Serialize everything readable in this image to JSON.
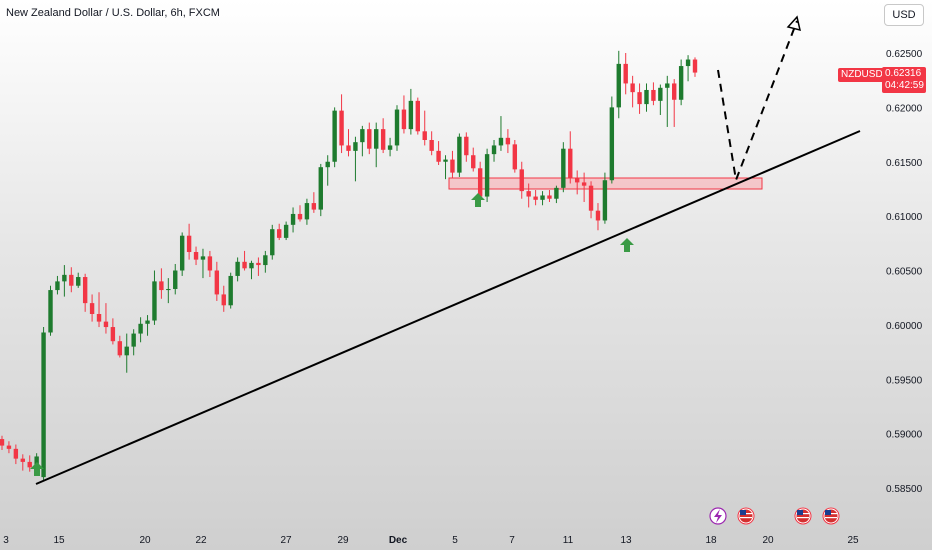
{
  "header": {
    "title": "New Zealand Dollar / U.S. Dollar, 6h, FXCM"
  },
  "currency_button": "USD",
  "price_tag": {
    "symbol": "NZDUSD",
    "price": "0.62316",
    "countdown": "04:42:59",
    "color": "#f23645"
  },
  "colors": {
    "up": "#1e7b2e",
    "down": "#f23645",
    "trendline": "#000000",
    "zone_fill": "#f7b9bd",
    "zone_border": "#f23645",
    "arrow": "#3a9a45"
  },
  "chart_data": {
    "type": "candlestick",
    "symbol": "NZDUSD",
    "timeframe": "6h",
    "title": "New Zealand Dollar / U.S. Dollar, 6h, FXCM",
    "ylim": [
      0.5825,
      0.6275
    ],
    "y_ticks": [
      "0.62500",
      "0.62000",
      "0.61500",
      "0.61000",
      "0.60500",
      "0.60000",
      "0.59500",
      "0.59000",
      "0.58500"
    ],
    "x_ticks": [
      "3",
      "15",
      "20",
      "22",
      "27",
      "29",
      "Dec",
      "5",
      "7",
      "11",
      "13",
      "18",
      "20",
      "25"
    ],
    "last_price": 0.62316,
    "candles": [
      [
        0.5895,
        0.5898,
        0.5885,
        0.5889
      ],
      [
        0.5889,
        0.5893,
        0.5882,
        0.5886
      ],
      [
        0.5886,
        0.589,
        0.5872,
        0.5877
      ],
      [
        0.5877,
        0.5881,
        0.5866,
        0.5874
      ],
      [
        0.5874,
        0.588,
        0.5865,
        0.5869
      ],
      [
        0.5869,
        0.5882,
        0.5862,
        0.5879
      ],
      [
        0.586,
        0.5998,
        0.5856,
        0.5993
      ],
      [
        0.5993,
        0.6036,
        0.599,
        0.6032
      ],
      [
        0.6032,
        0.6045,
        0.6028,
        0.604
      ],
      [
        0.604,
        0.6055,
        0.6026,
        0.6046
      ],
      [
        0.6046,
        0.6053,
        0.603,
        0.6036
      ],
      [
        0.6036,
        0.6048,
        0.6034,
        0.6044
      ],
      [
        0.6044,
        0.6047,
        0.6012,
        0.602
      ],
      [
        0.602,
        0.6028,
        0.6003,
        0.601
      ],
      [
        0.601,
        0.603,
        0.5998,
        0.6003
      ],
      [
        0.6003,
        0.602,
        0.5992,
        0.5998
      ],
      [
        0.5998,
        0.6006,
        0.5982,
        0.5985
      ],
      [
        0.5985,
        0.599,
        0.597,
        0.5972
      ],
      [
        0.5972,
        0.5992,
        0.5956,
        0.598
      ],
      [
        0.598,
        0.5996,
        0.5972,
        0.5992
      ],
      [
        0.5992,
        0.6007,
        0.5984,
        0.6001
      ],
      [
        0.6001,
        0.6009,
        0.599,
        0.6004
      ],
      [
        0.6004,
        0.605,
        0.6,
        0.604
      ],
      [
        0.604,
        0.6052,
        0.6024,
        0.6032
      ],
      [
        0.6032,
        0.6043,
        0.602,
        0.6033
      ],
      [
        0.6033,
        0.6056,
        0.6028,
        0.605
      ],
      [
        0.605,
        0.6085,
        0.6045,
        0.6082
      ],
      [
        0.6082,
        0.6093,
        0.606,
        0.6067
      ],
      [
        0.6067,
        0.6072,
        0.6055,
        0.606
      ],
      [
        0.606,
        0.607,
        0.6043,
        0.6063
      ],
      [
        0.6063,
        0.6068,
        0.6044,
        0.605
      ],
      [
        0.605,
        0.6058,
        0.6022,
        0.6028
      ],
      [
        0.6028,
        0.6036,
        0.6012,
        0.6018
      ],
      [
        0.6018,
        0.6048,
        0.6015,
        0.6045
      ],
      [
        0.6045,
        0.6062,
        0.604,
        0.6058
      ],
      [
        0.6058,
        0.6068,
        0.605,
        0.6052
      ],
      [
        0.6052,
        0.6059,
        0.6042,
        0.6057
      ],
      [
        0.6057,
        0.6062,
        0.6045,
        0.6055
      ],
      [
        0.6055,
        0.6068,
        0.6048,
        0.6064
      ],
      [
        0.6064,
        0.6092,
        0.606,
        0.6088
      ],
      [
        0.6088,
        0.6093,
        0.6078,
        0.608
      ],
      [
        0.608,
        0.6095,
        0.6078,
        0.6092
      ],
      [
        0.6092,
        0.6108,
        0.6085,
        0.6102
      ],
      [
        0.6102,
        0.611,
        0.6095,
        0.6097
      ],
      [
        0.6097,
        0.6116,
        0.6092,
        0.6112
      ],
      [
        0.6112,
        0.6122,
        0.6103,
        0.6106
      ],
      [
        0.6106,
        0.6148,
        0.61,
        0.6145
      ],
      [
        0.6145,
        0.6156,
        0.6128,
        0.615
      ],
      [
        0.615,
        0.62,
        0.6145,
        0.6197
      ],
      [
        0.6197,
        0.6212,
        0.6158,
        0.6165
      ],
      [
        0.6165,
        0.618,
        0.6155,
        0.616
      ],
      [
        0.616,
        0.6173,
        0.6132,
        0.6168
      ],
      [
        0.6168,
        0.6183,
        0.6155,
        0.618
      ],
      [
        0.618,
        0.6186,
        0.6157,
        0.6162
      ],
      [
        0.6162,
        0.6186,
        0.6145,
        0.618
      ],
      [
        0.618,
        0.619,
        0.6158,
        0.6161
      ],
      [
        0.6161,
        0.6172,
        0.6155,
        0.6165
      ],
      [
        0.6165,
        0.6202,
        0.616,
        0.6198
      ],
      [
        0.6198,
        0.6211,
        0.6176,
        0.618
      ],
      [
        0.618,
        0.6217,
        0.6175,
        0.6206
      ],
      [
        0.6206,
        0.6209,
        0.6175,
        0.6178
      ],
      [
        0.6178,
        0.6197,
        0.6165,
        0.617
      ],
      [
        0.617,
        0.6178,
        0.6156,
        0.616
      ],
      [
        0.616,
        0.6169,
        0.6147,
        0.615
      ],
      [
        0.615,
        0.6156,
        0.6134,
        0.6152
      ],
      [
        0.6152,
        0.616,
        0.6135,
        0.614
      ],
      [
        0.614,
        0.6176,
        0.6136,
        0.6173
      ],
      [
        0.6173,
        0.6177,
        0.615,
        0.6156
      ],
      [
        0.6156,
        0.6163,
        0.6141,
        0.6144
      ],
      [
        0.6144,
        0.615,
        0.611,
        0.6118
      ],
      [
        0.6118,
        0.6162,
        0.6113,
        0.6157
      ],
      [
        0.6157,
        0.617,
        0.615,
        0.6165
      ],
      [
        0.6165,
        0.6192,
        0.616,
        0.6172
      ],
      [
        0.6172,
        0.618,
        0.6158,
        0.6166
      ],
      [
        0.6166,
        0.617,
        0.614,
        0.6143
      ],
      [
        0.6143,
        0.615,
        0.6116,
        0.6123
      ],
      [
        0.6123,
        0.613,
        0.6108,
        0.6118
      ],
      [
        0.6118,
        0.6124,
        0.611,
        0.6115
      ],
      [
        0.6115,
        0.6123,
        0.611,
        0.6119
      ],
      [
        0.6119,
        0.6124,
        0.6113,
        0.6116
      ],
      [
        0.6116,
        0.6128,
        0.6112,
        0.6126
      ],
      [
        0.6126,
        0.6168,
        0.6122,
        0.6162
      ],
      [
        0.6162,
        0.6178,
        0.613,
        0.6135
      ],
      [
        0.6135,
        0.6142,
        0.612,
        0.6131
      ],
      [
        0.6131,
        0.614,
        0.6113,
        0.6128
      ],
      [
        0.6128,
        0.6132,
        0.6098,
        0.6105
      ],
      [
        0.6105,
        0.6112,
        0.6087,
        0.6096
      ],
      [
        0.6096,
        0.614,
        0.6093,
        0.6133
      ],
      [
        0.6133,
        0.621,
        0.613,
        0.62
      ],
      [
        0.62,
        0.6252,
        0.619,
        0.624
      ],
      [
        0.624,
        0.625,
        0.6212,
        0.6222
      ],
      [
        0.6222,
        0.6229,
        0.62,
        0.6214
      ],
      [
        0.6214,
        0.6222,
        0.6194,
        0.6203
      ],
      [
        0.6203,
        0.6222,
        0.6196,
        0.6216
      ],
      [
        0.6216,
        0.6223,
        0.6202,
        0.6206
      ],
      [
        0.6206,
        0.6221,
        0.6193,
        0.6218
      ],
      [
        0.6218,
        0.6229,
        0.6182,
        0.6222
      ],
      [
        0.6222,
        0.6226,
        0.6182,
        0.6207
      ],
      [
        0.6207,
        0.6244,
        0.6202,
        0.6238
      ],
      [
        0.6238,
        0.6248,
        0.6224,
        0.6244
      ],
      [
        0.6244,
        0.6246,
        0.6228,
        0.6232
      ]
    ]
  }
}
